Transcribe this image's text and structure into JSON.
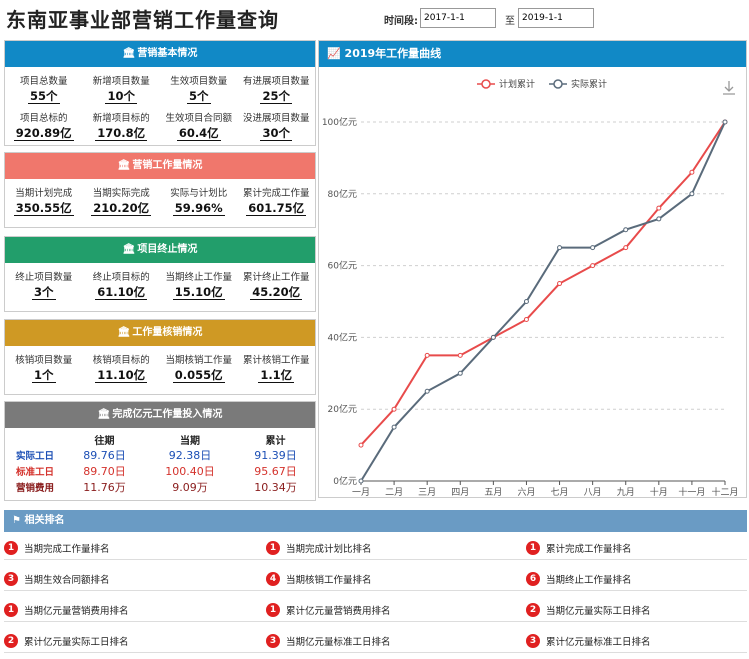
{
  "header": {
    "title": "东南亚事业部营销工作量查询",
    "time_label": "时间段:",
    "date_start": "2017-1-1",
    "date_sep": "至",
    "date_end": "2019-1-1"
  },
  "colors": {
    "basic": "#1189c6",
    "workload": "#f0776c",
    "termination": "#229e6b",
    "writeoff": "#cf9924",
    "investment": "#7a7a7a",
    "plan_line": "#e84b4b",
    "actual_line": "#5a6b7b"
  },
  "basic": {
    "title": "营销基本情况",
    "items": [
      {
        "label": "项目总数量",
        "value": "55个"
      },
      {
        "label": "新增项目数量",
        "value": "10个"
      },
      {
        "label": "生效项目数量",
        "value": "5个"
      },
      {
        "label": "有进展项目数量",
        "value": "25个"
      },
      {
        "label": "项目总标的",
        "value": "920.89亿"
      },
      {
        "label": "新增项目标的",
        "value": "170.8亿"
      },
      {
        "label": "生效项目合同额",
        "value": "60.4亿"
      },
      {
        "label": "没进展项目数量",
        "value": "30个"
      }
    ]
  },
  "workload": {
    "title": "营销工作量情况",
    "items": [
      {
        "label": "当期计划完成",
        "value": "350.55亿"
      },
      {
        "label": "当期实际完成",
        "value": "210.20亿"
      },
      {
        "label": "实际与计划比",
        "value": "59.96%"
      },
      {
        "label": "累计完成工作量",
        "value": "601.75亿"
      }
    ]
  },
  "termination": {
    "title": "项目终止情况",
    "items": [
      {
        "label": "终止项目数量",
        "value": "3个"
      },
      {
        "label": "终止项目标的",
        "value": "61.10亿"
      },
      {
        "label": "当期终止工作量",
        "value": "15.10亿"
      },
      {
        "label": "累计终止工作量",
        "value": "45.20亿"
      }
    ]
  },
  "writeoff": {
    "title": "工作量核销情况",
    "items": [
      {
        "label": "核销项目数量",
        "value": "1个"
      },
      {
        "label": "核销项目标的",
        "value": "11.10亿"
      },
      {
        "label": "当期核销工作量",
        "value": "0.055亿"
      },
      {
        "label": "累计核销工作量",
        "value": "1.1亿"
      }
    ]
  },
  "investment": {
    "title": "完成亿元工作量投入情况",
    "columns": [
      "往期",
      "当期",
      "累计"
    ],
    "rows": [
      {
        "label": "实际工日",
        "color": "#1c4fb5",
        "values": [
          "89.76日",
          "92.38日",
          "91.39日"
        ]
      },
      {
        "label": "标准工日",
        "color": "#d4322c",
        "values": [
          "89.70日",
          "100.40日",
          "95.67日"
        ]
      },
      {
        "label": "营销费用",
        "color": "#8a1d1d",
        "values": [
          "11.76万",
          "9.09万",
          "10.34万"
        ]
      }
    ]
  },
  "chart": {
    "title": "2019年工作量曲线",
    "chart_data": {
      "type": "line",
      "categories": [
        "一月",
        "二月",
        "三月",
        "四月",
        "五月",
        "六月",
        "七月",
        "八月",
        "九月",
        "十月",
        "十一月",
        "十二月"
      ],
      "y_ticks": [
        "0亿元",
        "20亿元",
        "40亿元",
        "60亿元",
        "80亿元",
        "100亿元"
      ],
      "ylim": [
        0,
        100
      ],
      "legend_position": "top-center",
      "series": [
        {
          "name": "计划累计",
          "color": "#e84b4b",
          "values": [
            10,
            20,
            35,
            35,
            40,
            45,
            55,
            60,
            65,
            76,
            86,
            100
          ]
        },
        {
          "name": "实际累计",
          "color": "#5a6b7b",
          "values": [
            0,
            15,
            25,
            30,
            40,
            50,
            65,
            65,
            70,
            73,
            80,
            100
          ]
        }
      ]
    }
  },
  "ranking": {
    "title": "相关排名",
    "rows": [
      [
        {
          "rank": "1",
          "label": "当期完成工作量排名"
        },
        {
          "rank": "1",
          "label": "当期完成计划比排名"
        },
        {
          "rank": "1",
          "label": "累计完成工作量排名"
        }
      ],
      [
        {
          "rank": "3",
          "label": "当期生效合同额排名"
        },
        {
          "rank": "4",
          "label": "当期核销工作量排名"
        },
        {
          "rank": "6",
          "label": "当期终止工作量排名"
        }
      ],
      [
        {
          "rank": "1",
          "label": "当期亿元量营销费用排名"
        },
        {
          "rank": "1",
          "label": "累计亿元量营销费用排名"
        },
        {
          "rank": "2",
          "label": "当期亿元量实际工日排名"
        }
      ],
      [
        {
          "rank": "2",
          "label": "累计亿元量实际工日排名"
        },
        {
          "rank": "3",
          "label": "当期亿元量标准工日排名"
        },
        {
          "rank": "3",
          "label": "累计亿元量标准工日排名"
        }
      ]
    ]
  }
}
